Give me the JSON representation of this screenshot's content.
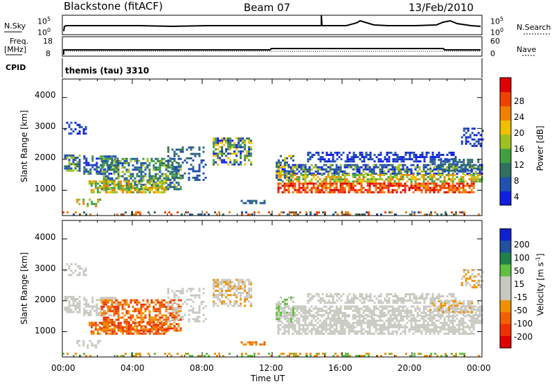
{
  "header": {
    "station": "Blackstone (fitACF)",
    "beam": "Beam 07",
    "date": "13/Feb/2010"
  },
  "strip_labels": {
    "nsky": "N.Sky",
    "nsky_ticks": [
      "10^5",
      "10^0"
    ],
    "nsearch": "N.Search",
    "nsearch_ticks": [
      "10^5",
      "10^0"
    ],
    "freq": "Freq.",
    "freq_unit": "[MHz]",
    "freq_ticks": [
      "18",
      "8"
    ],
    "nave": "Nave",
    "nave_ticks": [
      "60",
      "0"
    ],
    "cpid": "CPID",
    "cpid_value": "themis (tau) 3310"
  },
  "colors": {
    "power_scale": [
      "#1020e0",
      "#2050b0",
      "#307060",
      "#40a040",
      "#a0c020",
      "#f0c000",
      "#f08000",
      "#f04000",
      "#e00000"
    ],
    "velocity_scale": [
      "#1020d0",
      "#2050a0",
      "#20804a",
      "#60c040",
      "#c8c8c0",
      "#c8c8c0",
      "#f09000",
      "#f06000",
      "#f03000",
      "#e00000"
    ]
  },
  "chart_data": [
    {
      "type": "heatmap",
      "panel": "power",
      "ylabel": "Slant Range [km]",
      "ylim": [
        180,
        4600
      ],
      "yticks": [
        "4000",
        "3000",
        "2000",
        "1000"
      ],
      "xlim": [
        0,
        24
      ],
      "colorbar_label": "Power [dB]",
      "colorbar_ticks": [
        "28",
        "24",
        "20",
        "16",
        "12",
        "8",
        "4"
      ],
      "colorbar_range": [
        0,
        30
      ]
    },
    {
      "type": "heatmap",
      "panel": "velocity",
      "ylabel": "Slant Range [km]",
      "ylim": [
        180,
        4600
      ],
      "yticks": [
        "4000",
        "3000",
        "2000",
        "1000"
      ],
      "xlim": [
        0,
        24
      ],
      "xticks": [
        "00:00",
        "04:00",
        "08:00",
        "12:00",
        "16:00",
        "20:00",
        "00:00"
      ],
      "xlabel": "Time UT",
      "colorbar_label": "Velocity [m s^-1]",
      "colorbar_ticks": [
        "200",
        "100",
        "50",
        "15",
        "-15",
        "-50",
        "-100",
        "-200"
      ]
    }
  ]
}
